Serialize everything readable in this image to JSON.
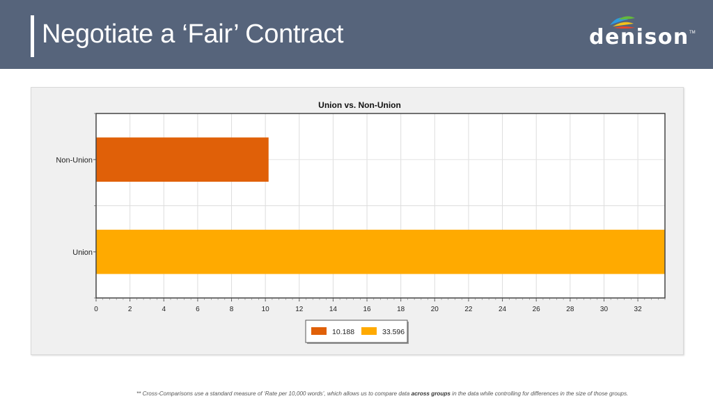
{
  "header": {
    "title": "Negotiate a ‘Fair’ Contract",
    "logo_text": "denison",
    "logo_tm": "TM"
  },
  "chart_data": {
    "type": "bar",
    "orientation": "horizontal",
    "title": "Union vs. Non-Union",
    "categories": [
      "Non-Union",
      "Union"
    ],
    "series": [
      {
        "name": "10.188",
        "values": [
          10.188,
          null
        ],
        "color": "#e06008"
      },
      {
        "name": "33.596",
        "values": [
          null,
          33.596
        ],
        "color": "#ffaa00"
      }
    ],
    "xlim": [
      0,
      33.6
    ],
    "xticks": [
      0,
      2,
      4,
      6,
      8,
      10,
      12,
      14,
      16,
      18,
      20,
      22,
      24,
      26,
      28,
      30,
      32
    ],
    "grid": true,
    "legend": "bottom-center",
    "xlabel": "",
    "ylabel": ""
  },
  "footnote": {
    "before": "** Cross-Comparisons use a standard measure of ‘Rate per 10,000 words’, which allows us to compare data ",
    "bold": "across groups",
    "after": " in the data while controlling for differences in the size of those groups."
  }
}
